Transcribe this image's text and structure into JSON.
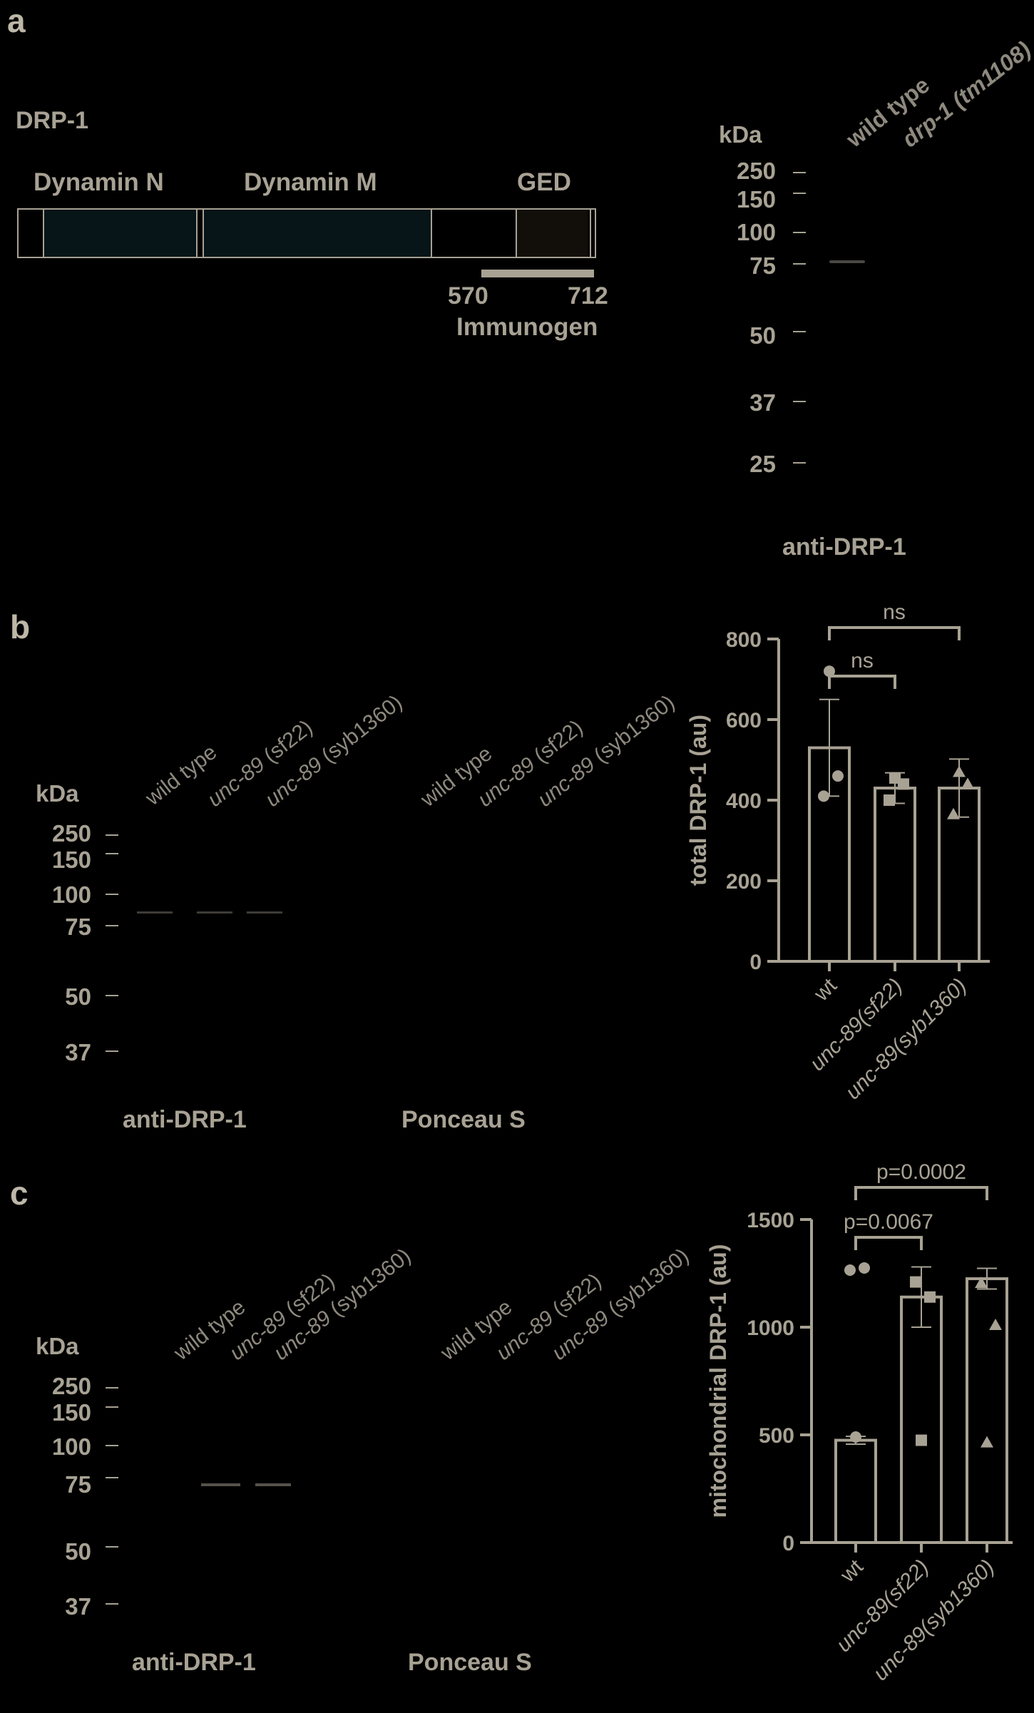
{
  "panel_a": {
    "letter": "a",
    "protein_name": "DRP-1",
    "domains": [
      "Dynamin N",
      "Dynamin M",
      "GED"
    ],
    "immunogen": {
      "start": "570",
      "end": "712",
      "label": "Immunogen"
    },
    "blot": {
      "kda_label": "kDa",
      "markers": [
        "250",
        "150",
        "100",
        "75",
        "50",
        "37",
        "25"
      ],
      "lanes": [
        "wild type",
        "drp-1 (tm1108)"
      ],
      "caption": "anti-DRP-1"
    }
  },
  "panel_b": {
    "letter": "b",
    "kda_label": "kDa",
    "markers": [
      "250",
      "150",
      "100",
      "75",
      "50",
      "37"
    ],
    "lanes": [
      {
        "plain": "wild type",
        "italic": ""
      },
      {
        "plain": " (sf22)",
        "italic": "unc-89"
      },
      {
        "plain": " (syb1360)",
        "italic": "unc-89"
      }
    ],
    "ponceau_lanes": [
      {
        "plain": "wild type",
        "italic": ""
      },
      {
        "plain": " (sf22)",
        "italic": "unc-89"
      },
      {
        "plain": " (syb1360)",
        "italic": "unc-89"
      }
    ],
    "blot_caption": "anti-DRP-1",
    "ponceau_caption": "Ponceau S"
  },
  "panel_c": {
    "letter": "c",
    "kda_label": "kDa",
    "markers": [
      "250",
      "150",
      "100",
      "75",
      "50",
      "37"
    ],
    "lanes": [
      {
        "plain": "wild type",
        "italic": ""
      },
      {
        "plain": " (sf22)",
        "italic": "unc-89"
      },
      {
        "plain": " (syb1360)",
        "italic": "unc-89"
      }
    ],
    "ponceau_lanes": [
      {
        "plain": "wild type",
        "italic": ""
      },
      {
        "plain": " (sf22)",
        "italic": "unc-89"
      },
      {
        "plain": " (syb1360)",
        "italic": "unc-89"
      }
    ],
    "blot_caption": "anti-DRP-1",
    "ponceau_caption": "Ponceau S"
  },
  "chart_data": [
    {
      "type": "bar",
      "ylabel": "total DRP-1 (au)",
      "ylim": [
        0,
        800
      ],
      "yticks": [
        "0",
        "200",
        "400",
        "600",
        "800"
      ],
      "categories": [
        "wt",
        "unc-89(sf22)",
        "unc-89(syb1360)"
      ],
      "values": [
        530,
        430,
        430
      ],
      "errors": [
        120,
        38,
        72
      ],
      "points": [
        [
          720,
          460,
          410
        ],
        [
          455,
          440,
          400
        ],
        [
          470,
          440,
          365
        ]
      ],
      "markers": [
        "circle",
        "square",
        "triangle"
      ],
      "significance": [
        {
          "from": "wt",
          "to": "unc-89(sf22)",
          "label": "ns"
        },
        {
          "from": "wt",
          "to": "unc-89(syb1360)",
          "label": "ns"
        }
      ]
    },
    {
      "type": "bar",
      "ylabel": "mitochondrial DRP-1 (au)",
      "ylim": [
        0,
        1500
      ],
      "yticks": [
        "0",
        "500",
        "1000",
        "1500"
      ],
      "categories": [
        "wt",
        "unc-89(sf22)",
        "unc-89(syb1360)"
      ],
      "values": [
        475,
        1140,
        1225
      ],
      "errors": [
        18,
        140,
        48
      ],
      "points": [
        [
          490,
          1275,
          1265
        ],
        [
          475,
          1140,
          1210
        ],
        [
          465,
          1010,
          1205
        ]
      ],
      "markers": [
        "circle",
        "square",
        "triangle"
      ],
      "significance": [
        {
          "from": "wt",
          "to": "unc-89(sf22)",
          "label": "p=0.0067"
        },
        {
          "from": "wt",
          "to": "unc-89(syb1360)",
          "label": "p=0.0002"
        }
      ]
    }
  ],
  "colors": {
    "foreground": "#a8a294",
    "background": "#000000",
    "band": "#6a675f",
    "ged_fill": "#120f0b",
    "dyn_fill": "#071418"
  }
}
